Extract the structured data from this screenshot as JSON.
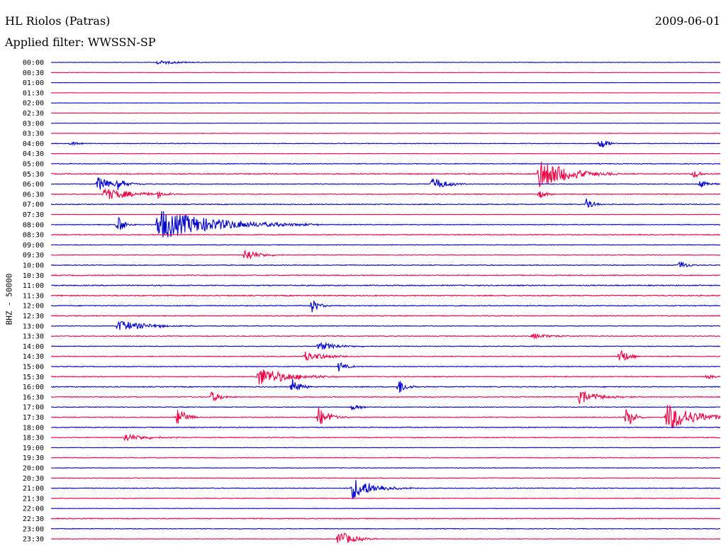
{
  "header": {
    "station": "HL Riolos (Patras)",
    "filter": "Applied filter: WWSSN-SP",
    "date": "2009-06-01"
  },
  "chart_data": {
    "type": "line",
    "title": "HL Riolos (Patras)",
    "subtitle": "Applied filter: WWSSN-SP",
    "date": "2009-06-01",
    "ylabel": "BHZ - 50000",
    "grid": false,
    "colors": [
      "#0000cc",
      "#ee0044"
    ],
    "time_labels": [
      "00:00",
      "00:30",
      "01:00",
      "01:30",
      "02:00",
      "02:30",
      "03:00",
      "03:30",
      "04:00",
      "04:30",
      "05:00",
      "05:30",
      "06:00",
      "06:30",
      "07:00",
      "07:30",
      "08:00",
      "08:30",
      "09:00",
      "09:30",
      "10:00",
      "10:30",
      "11:00",
      "11:30",
      "12:00",
      "12:30",
      "13:00",
      "13:30",
      "14:00",
      "14:30",
      "15:00",
      "15:30",
      "16:00",
      "16:30",
      "17:00",
      "17:30",
      "18:00",
      "18:30",
      "19:00",
      "19:30",
      "20:00",
      "20:30",
      "21:00",
      "21:30",
      "22:00",
      "22:30",
      "23:00",
      "23:30"
    ],
    "noise": [
      0.6,
      0.4,
      0.3,
      0.3,
      0.4,
      0.5,
      0.4,
      0.6,
      0.9,
      0.6,
      1.0,
      1.3,
      0.9,
      1.0,
      1.1,
      0.6,
      1.0,
      1.1,
      0.9,
      0.8,
      1.0,
      1.2,
      1.4,
      1.4,
      1.2,
      1.1,
      0.9,
      1.0,
      0.9,
      1.0,
      1.0,
      1.1,
      1.2,
      1.1,
      0.9,
      1.0,
      1.1,
      1.0,
      0.6,
      0.9,
      0.7,
      0.8,
      1.0,
      0.8,
      0.6,
      1.1,
      0.9,
      0.7
    ],
    "events": [
      {
        "trace": 0,
        "t": 0.16,
        "amp": 3,
        "dur": 0.03
      },
      {
        "trace": 8,
        "t": 0.03,
        "amp": 3,
        "dur": 0.01
      },
      {
        "trace": 8,
        "t": 0.82,
        "amp": 10,
        "dur": 0.01
      },
      {
        "trace": 11,
        "t": 0.73,
        "amp": 22,
        "dur": 0.04
      },
      {
        "trace": 11,
        "t": 0.96,
        "amp": 6,
        "dur": 0.01
      },
      {
        "trace": 12,
        "t": 0.07,
        "amp": 10,
        "dur": 0.02
      },
      {
        "trace": 12,
        "t": 0.1,
        "amp": 7,
        "dur": 0.015
      },
      {
        "trace": 12,
        "t": 0.57,
        "amp": 10,
        "dur": 0.02
      },
      {
        "trace": 12,
        "t": 0.97,
        "amp": 6,
        "dur": 0.01
      },
      {
        "trace": 13,
        "t": 0.08,
        "amp": 9,
        "dur": 0.04
      },
      {
        "trace": 13,
        "t": 0.16,
        "amp": 6,
        "dur": 0.01
      },
      {
        "trace": 13,
        "t": 0.73,
        "amp": 6,
        "dur": 0.01
      },
      {
        "trace": 14,
        "t": 0.8,
        "amp": 8,
        "dur": 0.01
      },
      {
        "trace": 16,
        "t": 0.1,
        "amp": 14,
        "dur": 0.01
      },
      {
        "trace": 16,
        "t": 0.16,
        "amp": 22,
        "dur": 0.08
      },
      {
        "trace": 19,
        "t": 0.29,
        "amp": 9,
        "dur": 0.02
      },
      {
        "trace": 20,
        "t": 0.94,
        "amp": 7,
        "dur": 0.01
      },
      {
        "trace": 24,
        "t": 0.39,
        "amp": 10,
        "dur": 0.01
      },
      {
        "trace": 26,
        "t": 0.1,
        "amp": 8,
        "dur": 0.04
      },
      {
        "trace": 27,
        "t": 0.72,
        "amp": 4,
        "dur": 0.03
      },
      {
        "trace": 28,
        "t": 0.4,
        "amp": 6,
        "dur": 0.03
      },
      {
        "trace": 29,
        "t": 0.38,
        "amp": 7,
        "dur": 0.03
      },
      {
        "trace": 29,
        "t": 0.85,
        "amp": 14,
        "dur": 0.01
      },
      {
        "trace": 30,
        "t": 0.43,
        "amp": 8,
        "dur": 0.01
      },
      {
        "trace": 31,
        "t": 0.31,
        "amp": 14,
        "dur": 0.04
      },
      {
        "trace": 31,
        "t": 0.98,
        "amp": 4,
        "dur": 0.01
      },
      {
        "trace": 32,
        "t": 0.36,
        "amp": 14,
        "dur": 0.01
      },
      {
        "trace": 32,
        "t": 0.52,
        "amp": 12,
        "dur": 0.01
      },
      {
        "trace": 33,
        "t": 0.24,
        "amp": 8,
        "dur": 0.015
      },
      {
        "trace": 33,
        "t": 0.79,
        "amp": 9,
        "dur": 0.03
      },
      {
        "trace": 34,
        "t": 0.45,
        "amp": 5,
        "dur": 0.01
      },
      {
        "trace": 35,
        "t": 0.19,
        "amp": 16,
        "dur": 0.01
      },
      {
        "trace": 35,
        "t": 0.4,
        "amp": 14,
        "dur": 0.015
      },
      {
        "trace": 35,
        "t": 0.86,
        "amp": 16,
        "dur": 0.01
      },
      {
        "trace": 35,
        "t": 0.92,
        "amp": 20,
        "dur": 0.04
      },
      {
        "trace": 37,
        "t": 0.11,
        "amp": 6,
        "dur": 0.03
      },
      {
        "trace": 42,
        "t": 0.45,
        "amp": 16,
        "dur": 0.03
      },
      {
        "trace": 47,
        "t": 0.43,
        "amp": 12,
        "dur": 0.02
      }
    ]
  }
}
